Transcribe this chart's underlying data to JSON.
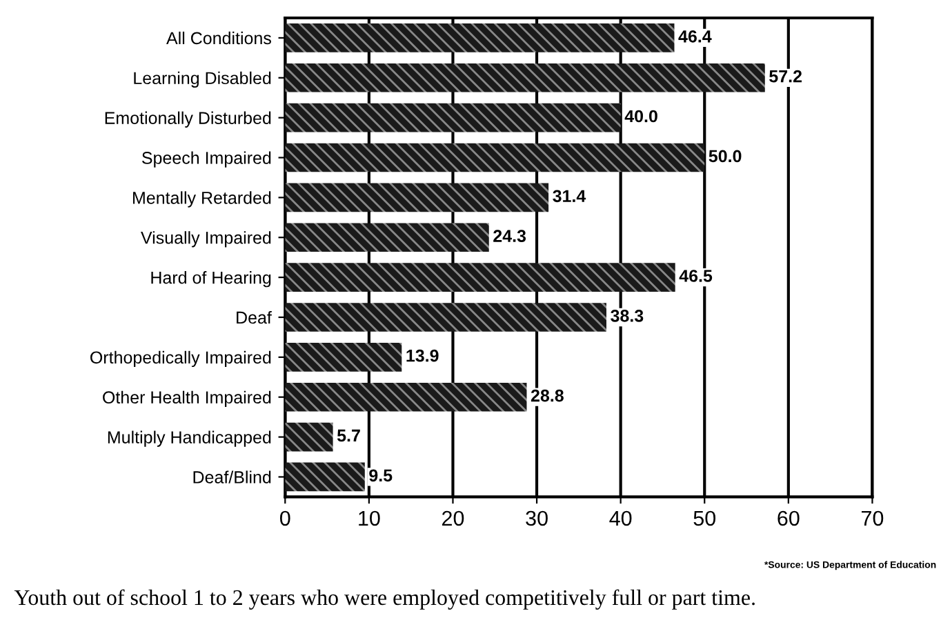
{
  "chart_data": {
    "type": "bar",
    "orientation": "horizontal",
    "categories": [
      "All Conditions",
      "Learning Disabled",
      "Emotionally Disturbed",
      "Speech Impaired",
      "Mentally Retarded",
      "Visually Impaired",
      "Hard of Hearing",
      "Deaf",
      "Orthopedically Impaired",
      "Other Health Impaired",
      "Multiply Handicapped",
      "Deaf/Blind"
    ],
    "values": [
      46.4,
      57.2,
      40.0,
      50.0,
      31.4,
      24.3,
      46.5,
      38.3,
      13.9,
      28.8,
      5.7,
      9.5
    ],
    "value_labels": [
      "46.4",
      "57.2",
      "40.0",
      "50.0",
      "31.4",
      "24.3",
      "46.5",
      "38.3",
      "13.9",
      "28.8",
      "5.7",
      "9.5"
    ],
    "color": "#1a1a1a",
    "xlim": [
      0,
      70
    ],
    "xticks": [
      0,
      10,
      20,
      30,
      40,
      50,
      60,
      70
    ],
    "grid": "x",
    "annotations": [
      "*Source: US Department of Education",
      "Youth out of school 1 to 2 years who were employed competitively full or part time."
    ]
  }
}
